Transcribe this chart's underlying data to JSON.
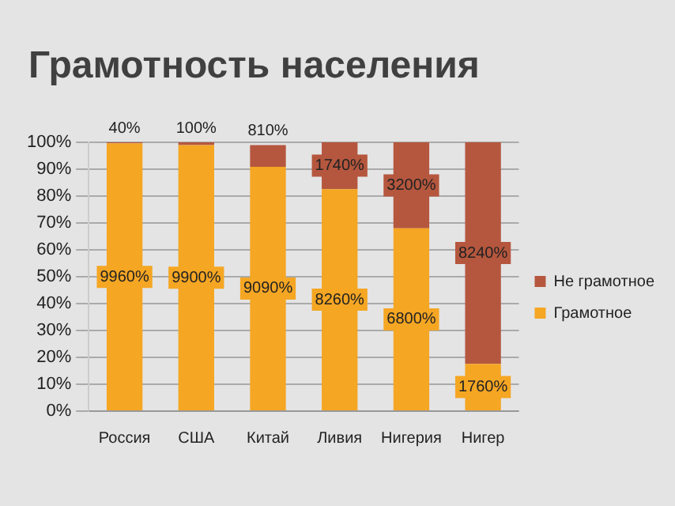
{
  "chart_data": {
    "type": "bar",
    "title": "Грамотность населения",
    "categories": [
      "Россия",
      "США",
      "Китай",
      "Ливия",
      "Нигерия",
      "Нигер"
    ],
    "stacked": true,
    "series": [
      {
        "name": "Грамотное",
        "color": "#f5a623",
        "values": [
          99.6,
          99,
          90.9,
          82.6,
          68,
          17.6
        ],
        "value_labels": [
          "9960%",
          "9900%",
          "9090%",
          "8260%",
          "6800%",
          "1760%"
        ]
      },
      {
        "name": "Не грамотное",
        "color": "#b5573e",
        "values": [
          0.4,
          1,
          8.1,
          17.4,
          32,
          82.4
        ],
        "value_labels": [
          "40%",
          "100%",
          "810%",
          "1740%",
          "3200%",
          "8240%"
        ]
      }
    ],
    "ylim": [
      0,
      100
    ],
    "yticks": [
      {
        "value": 0,
        "label": "0%"
      },
      {
        "value": 10,
        "label": "10%"
      },
      {
        "value": 20,
        "label": "20%"
      },
      {
        "value": 30,
        "label": "30%"
      },
      {
        "value": 40,
        "label": "40%"
      },
      {
        "value": 50,
        "label": "50%"
      },
      {
        "value": 60,
        "label": "60%"
      },
      {
        "value": 70,
        "label": "70%"
      },
      {
        "value": 80,
        "label": "80%"
      },
      {
        "value": 90,
        "label": "90%"
      },
      {
        "value": 100,
        "label": "100%"
      }
    ],
    "grid": "y",
    "legend": "right"
  }
}
